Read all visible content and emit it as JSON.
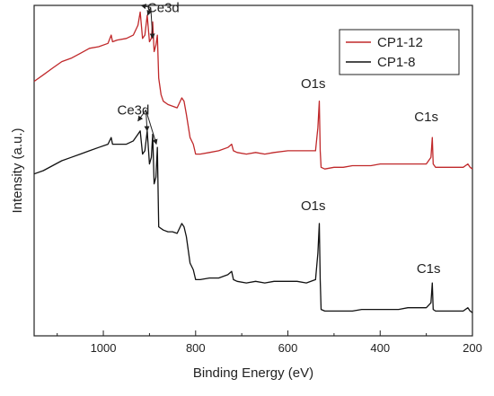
{
  "chart_data": {
    "type": "line",
    "xlabel": "Binding Energy (eV)",
    "ylabel": "Intensity (a.u.)",
    "xlim": [
      1150,
      200
    ],
    "x_reversed": true,
    "ylim": [
      0,
      100
    ],
    "y_ticks_shown": false,
    "x_ticks": [
      1000,
      800,
      600,
      400,
      200
    ],
    "x_tick_labels": [
      "1000",
      "800",
      "600",
      "400",
      "200"
    ],
    "legend_position": "top-right",
    "grid": false,
    "colors": {
      "CP1-12": "#c0282a",
      "CP1-8": "#111111"
    },
    "series": [
      {
        "name": "CP1-12",
        "points": [
          [
            1150,
            77
          ],
          [
            1130,
            79
          ],
          [
            1110,
            81
          ],
          [
            1090,
            83
          ],
          [
            1070,
            84
          ],
          [
            1050,
            85.5
          ],
          [
            1030,
            87
          ],
          [
            1010,
            87.5
          ],
          [
            990,
            88.5
          ],
          [
            983,
            91
          ],
          [
            980,
            89
          ],
          [
            970,
            89.5
          ],
          [
            950,
            90
          ],
          [
            935,
            91
          ],
          [
            925,
            94
          ],
          [
            920,
            98
          ],
          [
            915,
            90
          ],
          [
            910,
            91
          ],
          [
            905,
            97
          ],
          [
            900,
            89
          ],
          [
            896,
            90
          ],
          [
            893,
            95
          ],
          [
            890,
            86
          ],
          [
            886,
            88
          ],
          [
            883,
            91
          ],
          [
            880,
            78
          ],
          [
            875,
            73
          ],
          [
            870,
            71
          ],
          [
            860,
            70
          ],
          [
            850,
            69.5
          ],
          [
            840,
            69
          ],
          [
            830,
            72
          ],
          [
            825,
            71
          ],
          [
            820,
            67
          ],
          [
            812,
            60
          ],
          [
            805,
            58
          ],
          [
            800,
            55
          ],
          [
            790,
            55
          ],
          [
            770,
            55.5
          ],
          [
            750,
            56
          ],
          [
            730,
            57
          ],
          [
            722,
            58
          ],
          [
            718,
            56
          ],
          [
            710,
            55.5
          ],
          [
            690,
            55
          ],
          [
            670,
            55.5
          ],
          [
            650,
            55
          ],
          [
            630,
            55.5
          ],
          [
            600,
            56
          ],
          [
            580,
            56
          ],
          [
            560,
            56
          ],
          [
            540,
            56
          ],
          [
            535,
            63
          ],
          [
            532,
            71
          ],
          [
            530,
            56
          ],
          [
            528,
            51
          ],
          [
            520,
            50.5
          ],
          [
            500,
            51
          ],
          [
            480,
            51
          ],
          [
            460,
            51.5
          ],
          [
            440,
            51.5
          ],
          [
            420,
            51.5
          ],
          [
            400,
            52
          ],
          [
            380,
            52
          ],
          [
            360,
            52
          ],
          [
            340,
            52
          ],
          [
            320,
            52
          ],
          [
            300,
            52
          ],
          [
            290,
            54
          ],
          [
            287,
            60
          ],
          [
            285,
            52
          ],
          [
            280,
            51
          ],
          [
            260,
            51
          ],
          [
            240,
            51
          ],
          [
            220,
            51
          ],
          [
            210,
            52
          ],
          [
            205,
            51
          ],
          [
            200,
            50.5
          ]
        ]
      },
      {
        "name": "CP1-8",
        "points": [
          [
            1150,
            49
          ],
          [
            1130,
            50
          ],
          [
            1110,
            51.5
          ],
          [
            1090,
            53
          ],
          [
            1070,
            54
          ],
          [
            1050,
            55
          ],
          [
            1030,
            56
          ],
          [
            1010,
            57
          ],
          [
            990,
            58
          ],
          [
            983,
            60
          ],
          [
            980,
            58
          ],
          [
            970,
            58
          ],
          [
            950,
            58
          ],
          [
            935,
            59
          ],
          [
            925,
            61
          ],
          [
            920,
            62
          ],
          [
            915,
            55
          ],
          [
            910,
            56
          ],
          [
            905,
            62
          ],
          [
            900,
            52
          ],
          [
            896,
            54
          ],
          [
            893,
            61
          ],
          [
            890,
            46
          ],
          [
            886,
            48
          ],
          [
            883,
            57
          ],
          [
            880,
            33
          ],
          [
            870,
            32
          ],
          [
            860,
            31.5
          ],
          [
            850,
            31.5
          ],
          [
            840,
            31
          ],
          [
            830,
            34
          ],
          [
            825,
            33
          ],
          [
            820,
            30
          ],
          [
            812,
            22
          ],
          [
            805,
            20
          ],
          [
            800,
            17
          ],
          [
            790,
            17
          ],
          [
            770,
            17.5
          ],
          [
            750,
            17.5
          ],
          [
            730,
            18.5
          ],
          [
            722,
            19.5
          ],
          [
            718,
            17
          ],
          [
            710,
            16.5
          ],
          [
            690,
            16
          ],
          [
            670,
            16.5
          ],
          [
            650,
            16
          ],
          [
            630,
            16.5
          ],
          [
            600,
            16.5
          ],
          [
            580,
            16.5
          ],
          [
            560,
            16
          ],
          [
            540,
            17
          ],
          [
            535,
            25
          ],
          [
            532,
            34
          ],
          [
            530,
            17
          ],
          [
            528,
            8
          ],
          [
            520,
            7.5
          ],
          [
            500,
            7.5
          ],
          [
            480,
            7.5
          ],
          [
            460,
            7.5
          ],
          [
            440,
            8
          ],
          [
            420,
            8
          ],
          [
            400,
            8
          ],
          [
            380,
            8
          ],
          [
            360,
            8
          ],
          [
            340,
            8.5
          ],
          [
            320,
            8.5
          ],
          [
            300,
            8.5
          ],
          [
            290,
            10
          ],
          [
            287,
            16
          ],
          [
            285,
            8
          ],
          [
            280,
            7.5
          ],
          [
            260,
            7.5
          ],
          [
            240,
            7.5
          ],
          [
            220,
            7.5
          ],
          [
            210,
            8.5
          ],
          [
            205,
            7.5
          ],
          [
            200,
            7
          ]
        ]
      }
    ],
    "annotations": [
      {
        "text": "Ce3d",
        "series": "CP1-12",
        "x": 870,
        "y": 98,
        "arrow_to": [
          [
            918,
            100
          ],
          [
            904,
            97
          ],
          [
            893,
            90
          ]
        ]
      },
      {
        "text": "Ce3d",
        "series": "CP1-8",
        "x": 935,
        "y": 67,
        "arrow_to": [
          [
            925,
            65
          ],
          [
            905,
            62
          ],
          [
            885,
            58
          ]
        ]
      },
      {
        "text": "O1s",
        "series": "CP1-12",
        "x": 545,
        "y": 75
      },
      {
        "text": "C1s",
        "series": "CP1-12",
        "x": 300,
        "y": 65
      },
      {
        "text": "O1s",
        "series": "CP1-8",
        "x": 545,
        "y": 38
      },
      {
        "text": "C1s",
        "series": "CP1-8",
        "x": 295,
        "y": 19
      }
    ]
  }
}
